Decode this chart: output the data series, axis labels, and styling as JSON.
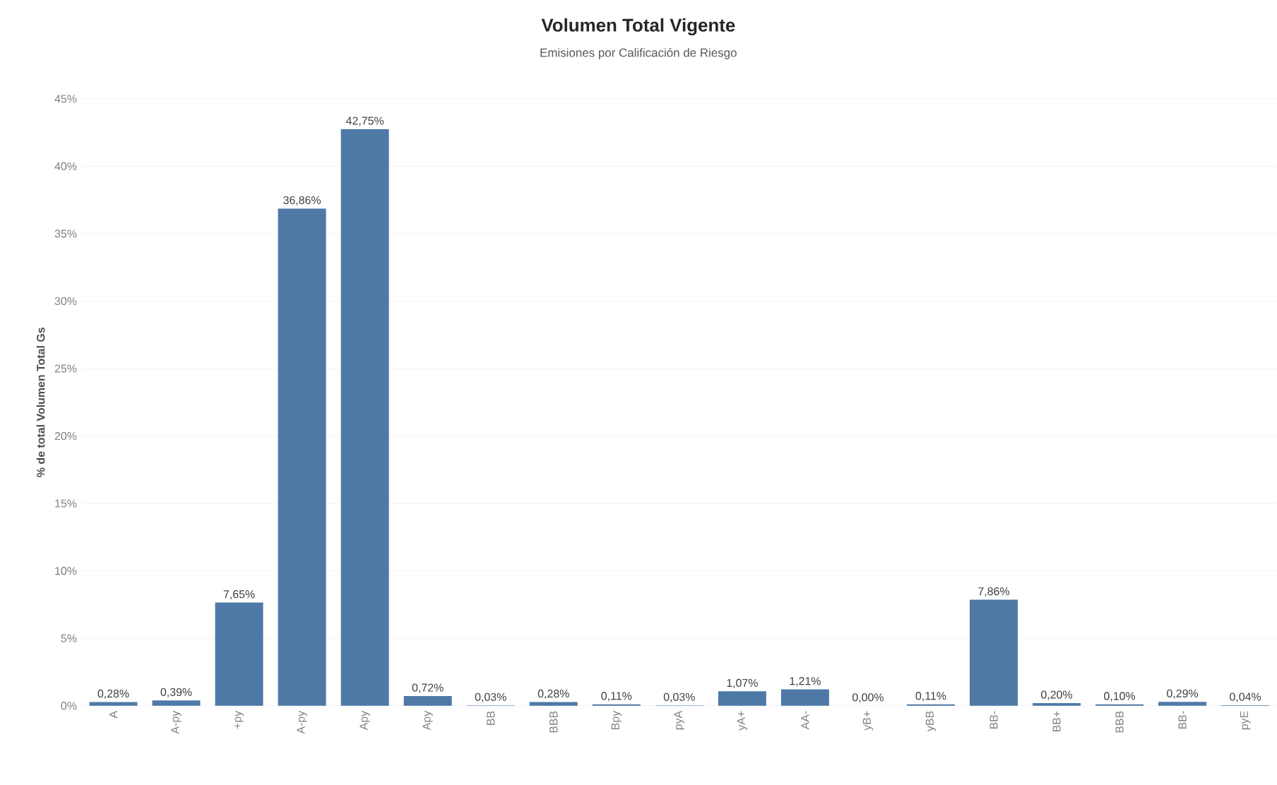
{
  "chart_data": {
    "type": "bar",
    "title": "Volumen Total Vigente",
    "subtitle": "Emisiones por Calificación de Riesgo",
    "ylabel": "% de total Volumen Total Gs",
    "categories": [
      "A",
      "A-py",
      "+py",
      "A-py",
      "Apy",
      "Apy",
      "BB",
      "BBB",
      "Bpy",
      "pyA",
      "yA+",
      "AA-",
      "yB+",
      "yBB",
      "BB-",
      "BB+",
      "BBB",
      "BB-",
      "pyE"
    ],
    "values": [
      0.28,
      0.39,
      7.65,
      36.86,
      42.75,
      0.72,
      0.03,
      0.28,
      0.11,
      0.03,
      1.07,
      1.21,
      0.0,
      0.11,
      7.86,
      0.2,
      0.1,
      0.29,
      0.04
    ],
    "value_labels": [
      "0,28%",
      "0,39%",
      "7,65%",
      "36,86%",
      "42,75%",
      "0,72%",
      "0,03%",
      "0,28%",
      "0,11%",
      "0,03%",
      "1,07%",
      "1,21%",
      "0,00%",
      "0,11%",
      "7,86%",
      "0,20%",
      "0,10%",
      "0,29%",
      "0,04%"
    ],
    "color": "#4e79a7",
    "ylim": [
      0,
      45
    ],
    "yticks": [
      {
        "value": 0,
        "label": "0%"
      },
      {
        "value": 5,
        "label": "5%"
      },
      {
        "value": 10,
        "label": "10%"
      },
      {
        "value": 15,
        "label": "15%"
      },
      {
        "value": 20,
        "label": "20%"
      },
      {
        "value": 25,
        "label": "25%"
      },
      {
        "value": 30,
        "label": "30%"
      },
      {
        "value": 35,
        "label": "35%"
      },
      {
        "value": 40,
        "label": "40%"
      },
      {
        "value": 45,
        "label": "45%"
      }
    ],
    "grid": "y"
  }
}
